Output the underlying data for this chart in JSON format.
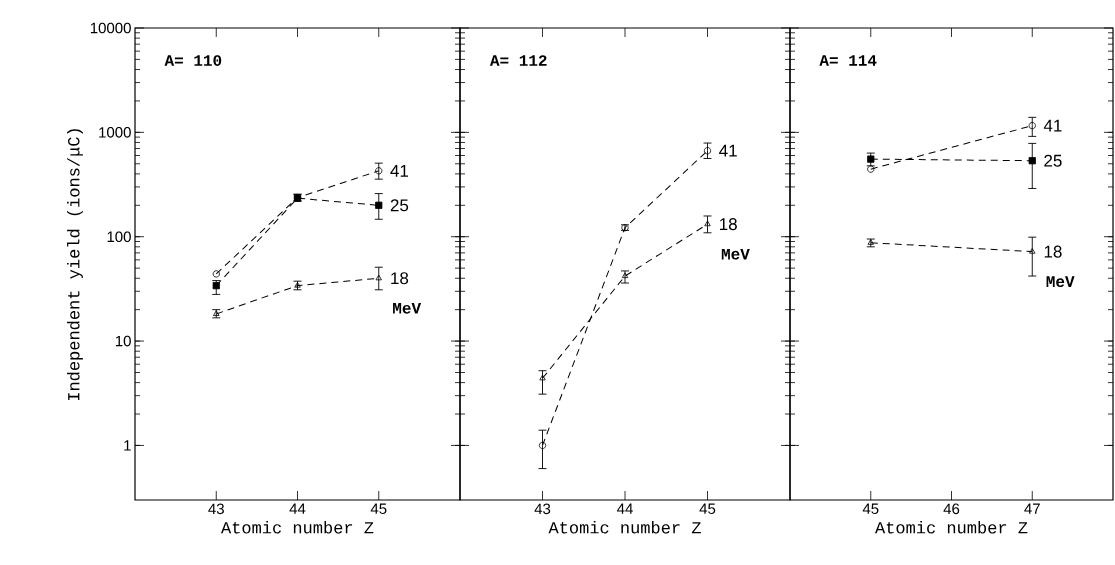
{
  "chart_data": [
    {
      "type": "line",
      "xlabel": "Atomic number Z",
      "ylabel": "Independent yield (ions/μC)",
      "annotations": [
        "A= 110",
        "MeV"
      ],
      "x": [
        43,
        44,
        45
      ],
      "xlim": [
        42,
        46
      ],
      "xticks": [
        43,
        44,
        45
      ],
      "ylim": [
        0.3,
        10000
      ],
      "yticks": [
        1,
        10,
        100,
        1000,
        10000
      ],
      "log": "y",
      "line_style": "dashed",
      "series": [
        {
          "name": "41",
          "color": "#000000",
          "marker": "circle",
          "values": [
            44,
            237,
            428
          ],
          "errors": [
            null,
            [
              220,
              255
            ],
            [
              356,
              507
            ]
          ]
        },
        {
          "name": "25",
          "color": "#000000",
          "marker": "square",
          "values": [
            34,
            234,
            200
          ],
          "errors": [
            [
              28,
              38
            ],
            [
              220,
              255
            ],
            [
              147,
              259
            ]
          ]
        },
        {
          "name": "18",
          "color": "#000000",
          "marker": "triangle",
          "values": [
            18.2,
            34,
            40
          ],
          "errors": [
            [
              16.7,
              20
            ],
            [
              31,
              37.5
            ],
            [
              31,
              51
            ]
          ]
        }
      ]
    },
    {
      "type": "line",
      "xlabel": "Atomic number Z",
      "annotations": [
        "A= 112",
        "MeV"
      ],
      "x": [
        43,
        44,
        45
      ],
      "xlim": [
        42,
        46
      ],
      "xticks": [
        43,
        44,
        45
      ],
      "ylim": [
        0.3,
        10000
      ],
      "yticks": [
        1,
        10,
        100,
        1000,
        10000
      ],
      "log": "y",
      "tick_labels": "x",
      "line_style": "dashed",
      "series": [
        {
          "name": "41",
          "color": "#000000",
          "marker": "circle",
          "values": [
            1,
            122,
            667
          ],
          "errors": [
            [
              0.6,
              1.4
            ],
            [
              115,
              130
            ],
            [
              562,
              790
            ]
          ]
        },
        {
          "name": "18",
          "color": "#000000",
          "marker": "triangle",
          "values": [
            4.4,
            42,
            132
          ],
          "errors": [
            [
              3.1,
              5.2
            ],
            [
              36,
              47
            ],
            [
              109,
              158
            ]
          ]
        }
      ]
    },
    {
      "type": "line",
      "xlabel": "Atomic number Z",
      "annotations": [
        "A= 114",
        "MeV"
      ],
      "x": [
        45,
        47
      ],
      "xlim": [
        44,
        48
      ],
      "xticks": [
        45,
        46,
        47
      ],
      "ylim": [
        0.3,
        10000
      ],
      "yticks": [
        1,
        10,
        100,
        1000,
        10000
      ],
      "log": "y",
      "tick_labels": "x",
      "line_style": "dashed",
      "series": [
        {
          "name": "41",
          "color": "#000000",
          "marker": "circle",
          "values": [
            444,
            1160
          ],
          "errors": [
            null,
            [
              915,
              1393
            ]
          ]
        },
        {
          "name": "25",
          "color": "#000000",
          "marker": "square",
          "values": [
            554,
            535
          ],
          "errors": [
            [
              478,
              633
            ],
            [
              290,
              784
            ]
          ]
        },
        {
          "name": "18",
          "color": "#000000",
          "marker": "triangle",
          "values": [
            87.5,
            72
          ],
          "errors": [
            [
              80,
              95
            ],
            [
              42,
              99
            ]
          ]
        }
      ]
    }
  ]
}
